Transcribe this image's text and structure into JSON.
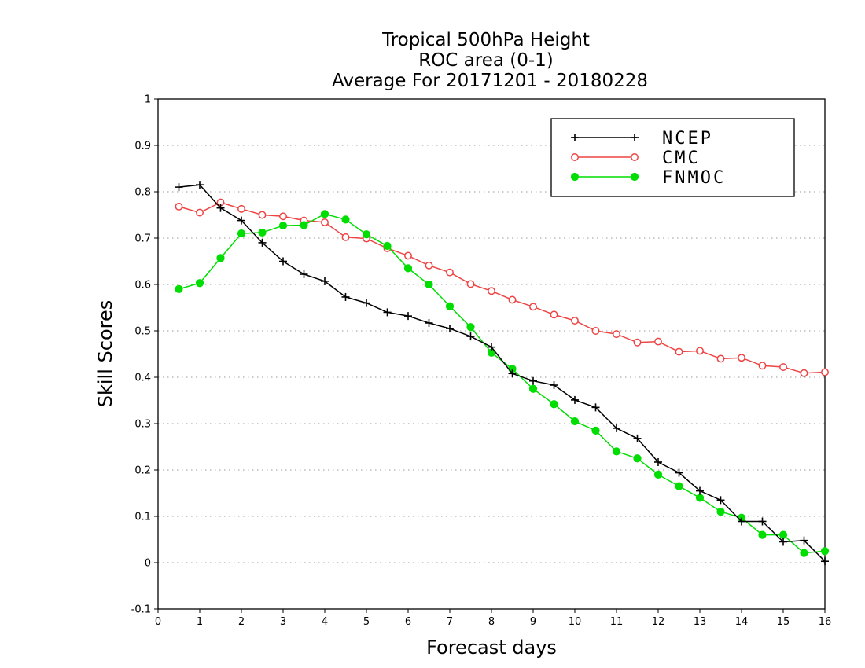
{
  "chart_data": {
    "type": "line",
    "title": [
      "Tropical 500hPa Height",
      "ROC area (0-1)",
      "Average For 20171201 - 20180228"
    ],
    "xlabel": "Forecast days",
    "ylabel": "Skill Scores",
    "xlim": [
      0,
      16
    ],
    "ylim": [
      -0.1,
      1
    ],
    "xticks": [
      0,
      1,
      2,
      3,
      4,
      5,
      6,
      7,
      8,
      9,
      10,
      11,
      12,
      13,
      14,
      15,
      16
    ],
    "yticks": [
      -0.1,
      0,
      0.1,
      0.2,
      0.3,
      0.4,
      0.5,
      0.6,
      0.7,
      0.8,
      0.9,
      1
    ],
    "ytick_labels": [
      "-0.1",
      "0",
      "0.1",
      "0.2",
      "0.3",
      "0.4",
      "0.5",
      "0.6",
      "0.7",
      "0.8",
      "0.9",
      "1"
    ],
    "grid": "horizontal dotted",
    "legend_position": "top-right",
    "x": [
      0.5,
      1,
      1.5,
      2,
      2.5,
      3,
      3.5,
      4,
      4.5,
      5,
      5.5,
      6,
      6.5,
      7,
      7.5,
      8,
      8.5,
      9,
      9.5,
      10,
      10.5,
      11,
      11.5,
      12,
      12.5,
      13,
      13.5,
      14,
      14.5,
      15,
      15.5,
      16
    ],
    "series": [
      {
        "name": "NCEP",
        "color": "#000000",
        "marker": "plus",
        "values": [
          0.81,
          0.815,
          0.765,
          0.738,
          0.69,
          0.65,
          0.622,
          0.607,
          0.573,
          0.56,
          0.54,
          0.532,
          0.517,
          0.505,
          0.488,
          0.465,
          0.408,
          0.392,
          0.383,
          0.351,
          0.335,
          0.29,
          0.268,
          0.217,
          0.194,
          0.155,
          0.135,
          0.089,
          0.089,
          0.045,
          0.048,
          0.003
        ]
      },
      {
        "name": "CMC",
        "color": "#ee4444",
        "marker": "open-circle",
        "values": [
          0.768,
          0.755,
          0.777,
          0.763,
          0.75,
          0.747,
          0.738,
          0.734,
          0.702,
          0.699,
          0.678,
          0.662,
          0.641,
          0.626,
          0.601,
          0.586,
          0.567,
          0.552,
          0.535,
          0.522,
          0.5,
          0.493,
          0.475,
          0.477,
          0.455,
          0.457,
          0.44,
          0.442,
          0.425,
          0.422,
          0.409,
          0.411
        ]
      },
      {
        "name": "FNMOC",
        "color": "#00dd00",
        "marker": "filled-circle",
        "values": [
          0.59,
          0.603,
          0.657,
          0.71,
          0.712,
          0.727,
          0.728,
          0.752,
          0.74,
          0.708,
          0.683,
          0.635,
          0.6,
          0.553,
          0.508,
          0.453,
          0.418,
          0.375,
          0.342,
          0.305,
          0.285,
          0.24,
          0.225,
          0.19,
          0.165,
          0.14,
          0.11,
          0.097,
          0.06,
          0.06,
          0.021,
          0.025
        ]
      }
    ]
  }
}
